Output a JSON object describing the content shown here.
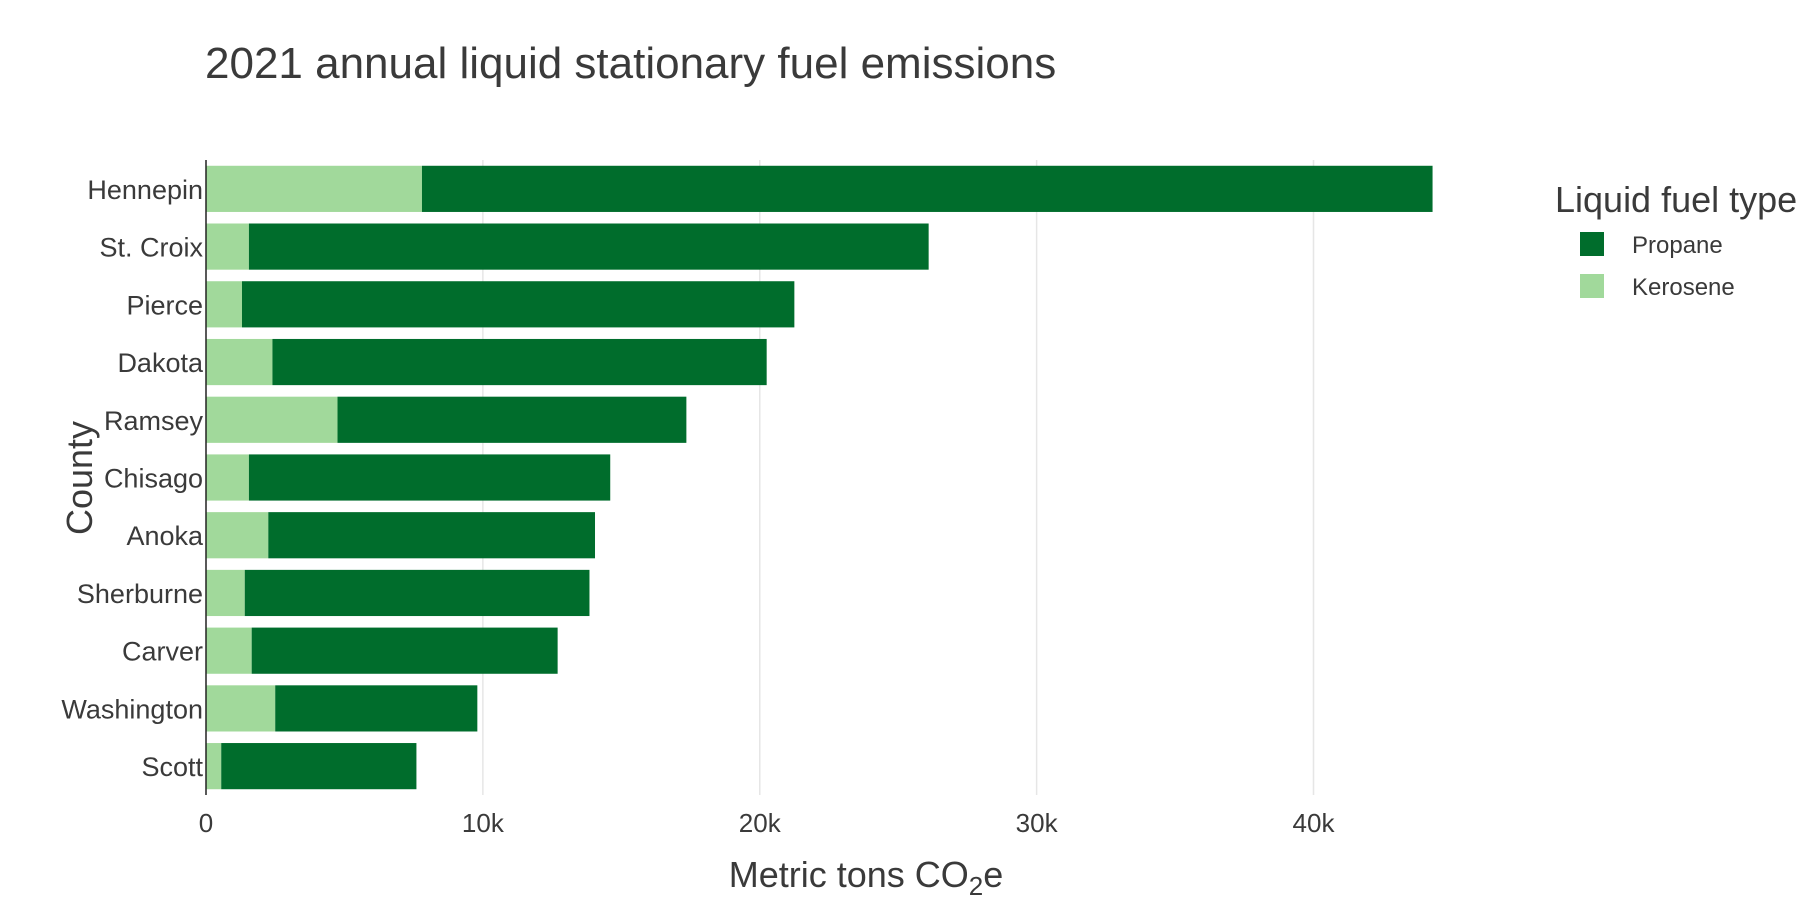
{
  "chart_data": {
    "type": "bar",
    "orientation": "horizontal",
    "stacked": true,
    "title": "2021 annual liquid stationary fuel emissions",
    "xlabel": "Metric tons CO",
    "xlabel_subscript": "2",
    "xlabel_suffix": "e",
    "ylabel": "County",
    "xlim": [
      0,
      48000
    ],
    "xticks": [
      0,
      10000,
      20000,
      30000,
      40000
    ],
    "xtick_labels": [
      "0",
      "10k",
      "20k",
      "30k",
      "40k"
    ],
    "grid": "vertical",
    "legend": {
      "title": "Liquid fuel type",
      "position": "right",
      "entries": [
        {
          "name": "Propane",
          "color": "#006d2c"
        },
        {
          "name": "Kerosene",
          "color": "#a1d99b"
        }
      ]
    },
    "categories": [
      "Hennepin",
      "St. Croix",
      "Pierce",
      "Dakota",
      "Ramsey",
      "Chisago",
      "Anoka",
      "Sherburne",
      "Carver",
      "Washington",
      "Scott"
    ],
    "series": [
      {
        "name": "Kerosene",
        "color": "#a1d99b",
        "values": [
          7800,
          1550,
          1300,
          2400,
          4750,
          1550,
          2250,
          1400,
          1650,
          2500,
          550
        ]
      },
      {
        "name": "Propane",
        "color": "#006d2c",
        "values": [
          36500,
          24550,
          19950,
          17850,
          12600,
          13050,
          11800,
          12450,
          11050,
          7300,
          7050
        ]
      }
    ]
  }
}
